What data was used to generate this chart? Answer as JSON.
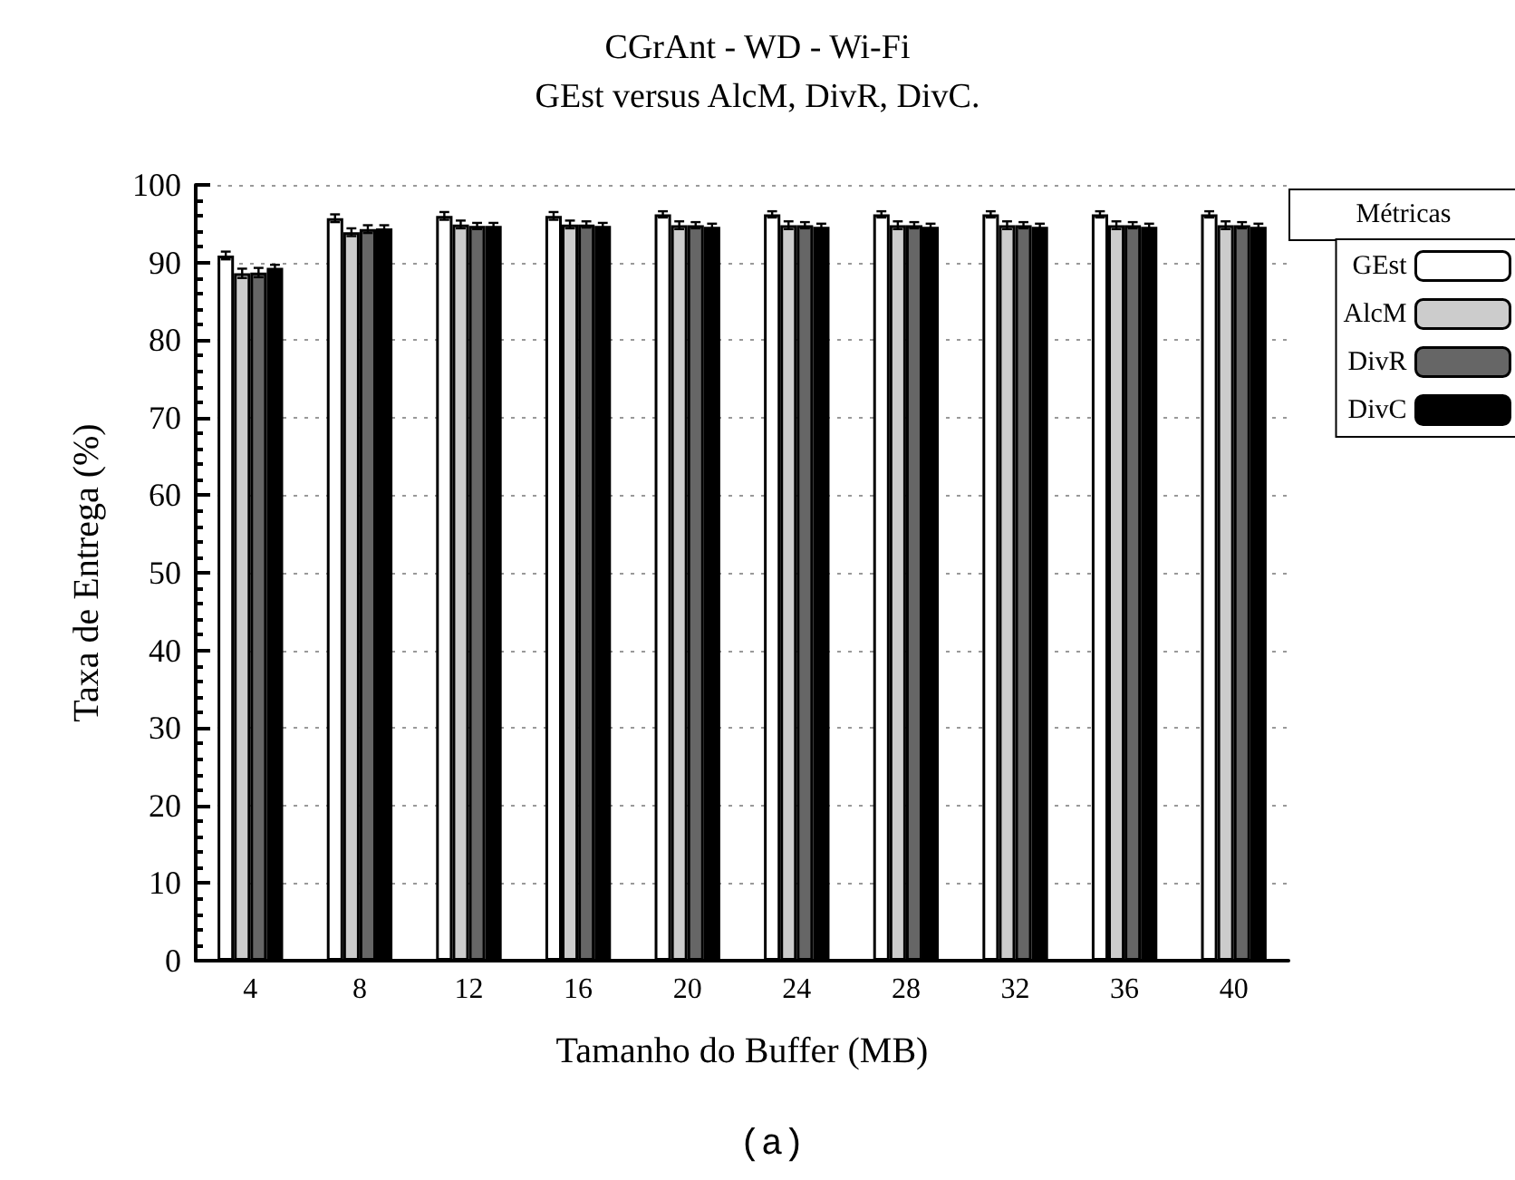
{
  "chart_data": {
    "type": "bar",
    "title": "CGrAnt - WD - Wi-Fi",
    "subtitle": "GEst versus AlcM, DivR, DivC.",
    "xlabel": "Tamanho do Buffer (MB)",
    "ylabel": "Taxa de Entrega (%)",
    "legend_title": "Métricas",
    "annotations": [
      "(a)"
    ],
    "categories": [
      "4",
      "8",
      "12",
      "16",
      "20",
      "24",
      "28",
      "32",
      "36",
      "40"
    ],
    "series": [
      {
        "name": "GEst",
        "color": "#ffffff",
        "values": [
          90.9,
          95.7,
          96.0,
          96.0,
          96.2,
          96.2,
          96.2,
          96.2,
          96.2,
          96.2
        ],
        "errors": [
          0.5,
          0.5,
          0.5,
          0.5,
          0.4,
          0.4,
          0.4,
          0.4,
          0.4,
          0.4
        ]
      },
      {
        "name": "AlcM",
        "color": "#cccccc",
        "values": [
          88.6,
          93.9,
          94.9,
          94.9,
          94.8,
          94.8,
          94.8,
          94.8,
          94.8,
          94.8
        ],
        "errors": [
          0.6,
          0.5,
          0.5,
          0.5,
          0.5,
          0.5,
          0.5,
          0.5,
          0.5,
          0.5
        ]
      },
      {
        "name": "DivR",
        "color": "#666666",
        "values": [
          88.7,
          94.3,
          94.7,
          94.9,
          94.8,
          94.8,
          94.8,
          94.8,
          94.8,
          94.8
        ],
        "errors": [
          0.6,
          0.5,
          0.4,
          0.4,
          0.4,
          0.4,
          0.4,
          0.4,
          0.4,
          0.4
        ]
      },
      {
        "name": "DivC",
        "color": "#000000",
        "values": [
          89.3,
          94.4,
          94.7,
          94.7,
          94.6,
          94.6,
          94.6,
          94.6,
          94.6,
          94.6
        ],
        "errors": [
          0.4,
          0.4,
          0.4,
          0.4,
          0.4,
          0.4,
          0.4,
          0.4,
          0.4,
          0.4
        ]
      }
    ],
    "ylim": [
      0,
      100
    ],
    "yticks": [
      0,
      10,
      20,
      30,
      40,
      50,
      60,
      70,
      80,
      90,
      100
    ],
    "grid": "y",
    "legend": "top right"
  }
}
